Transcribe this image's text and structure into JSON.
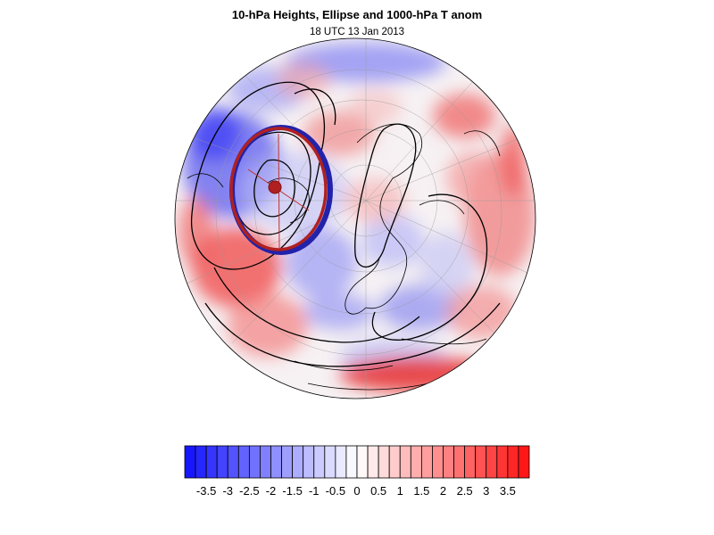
{
  "title": "10-hPa Heights, Ellipse and 1000-hPa T anom",
  "subtitle": "18 UTC 13 Jan 2013",
  "colorbar": {
    "min": -4.0,
    "max": 4.0,
    "step": 0.25,
    "tick_labels": [
      "-3.5",
      "-3",
      "-2.5",
      "-2",
      "-1.5",
      "-1",
      "-0.5",
      "0",
      "0.5",
      "1",
      "1.5",
      "2",
      "2.5",
      "3",
      "3.5"
    ],
    "tick_values": [
      -3.5,
      -3,
      -2.5,
      -2,
      -1.5,
      -1,
      -0.5,
      0,
      0.5,
      1,
      1.5,
      2,
      2.5,
      3,
      3.5
    ],
    "low_color": "#1010ff",
    "mid_color": "#ffffff",
    "high_color": "#ff1010"
  },
  "map": {
    "projection": "orthographic-polar",
    "ocean_color": "#ffffff",
    "contour_color": "#000000",
    "ellipse_outer_color": "#2222aa",
    "ellipse_inner_color": "#b02020",
    "graticule_color": "#999999"
  }
}
